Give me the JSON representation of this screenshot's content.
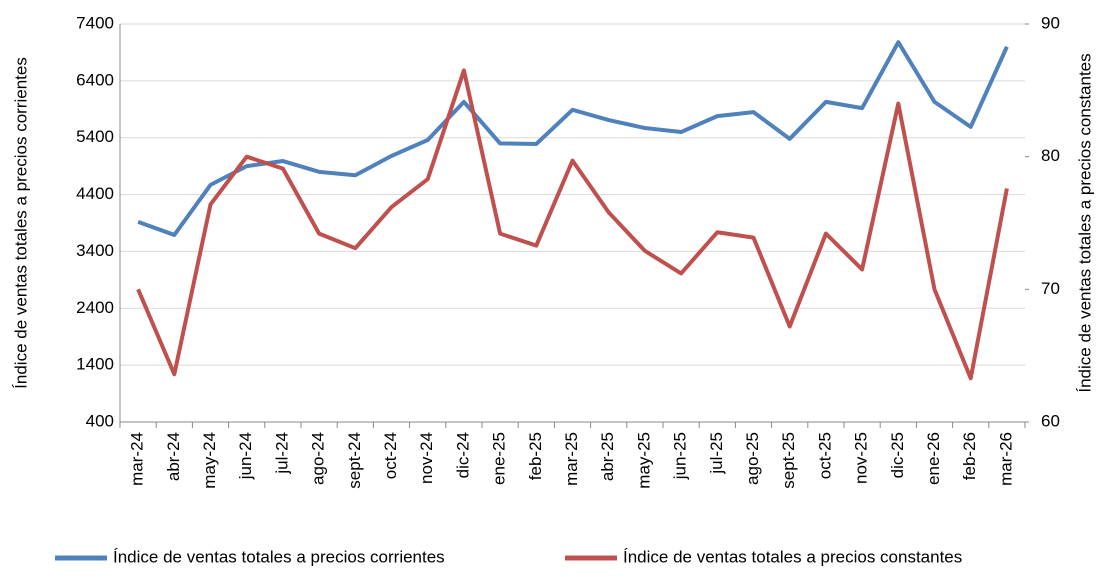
{
  "chart_data": {
    "type": "line",
    "y_label": "Índice de ventas totales a precios corrientes",
    "y2_label": "Índice de ventas totales a precios constantes",
    "categories": [
      "mar-24",
      "abr-24",
      "may-24",
      "jun-24",
      "jul-24",
      "ago-24",
      "sept-24",
      "oct-24",
      "nov-24",
      "dic-24",
      "ene-25",
      "feb-25",
      "mar-25",
      "abr-25",
      "may-25",
      "jun-25",
      "jul-25",
      "ago-25",
      "sept-25",
      "oct-25",
      "nov-25",
      "dic-25",
      "ene-26",
      "feb-26",
      "mar-26"
    ],
    "series": [
      {
        "name": "Índice de ventas totales a precios corrientes",
        "color": "#4f81bd",
        "values": [
          3920,
          3690,
          4570,
          4900,
          4990,
          4800,
          4740,
          5080,
          5360,
          6030,
          5300,
          5290,
          5890,
          5710,
          5570,
          5500,
          5780,
          5850,
          5380,
          6030,
          5920,
          7080,
          6030,
          5590,
          7000
        ]
      },
      {
        "name": "Índice de ventas totales a precios constantes",
        "color": "#c0504d",
        "axis": "y2",
        "values": [
          70.0,
          63.6,
          76.4,
          80.0,
          79.1,
          74.2,
          73.1,
          76.2,
          78.3,
          86.5,
          74.2,
          73.3,
          79.7,
          75.8,
          72.9,
          71.2,
          74.3,
          73.9,
          67.2,
          74.2,
          71.5,
          84.0,
          70.0,
          63.3,
          77.6
        ]
      }
    ],
    "ylim": [
      400,
      7400
    ],
    "yticks": [
      400,
      1400,
      2400,
      3400,
      4400,
      5400,
      6400,
      7400
    ],
    "y2lim": [
      60,
      90
    ],
    "y2ticks": [
      60,
      70,
      80,
      90
    ],
    "grid": true,
    "legend": "bottom"
  }
}
